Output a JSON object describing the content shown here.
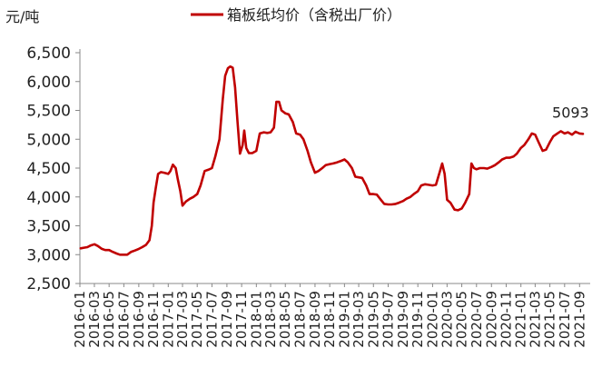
{
  "chart_data": {
    "type": "line",
    "y_unit_label": "元/吨",
    "legend": {
      "label": "箱板纸均价（含税出厂价）",
      "placement": "top-center"
    },
    "series": [
      {
        "name": "箱板纸均价（含税出厂价）",
        "color": "#C00000",
        "points": [
          [
            "2016-01-04",
            3110
          ],
          [
            "2016-01-18",
            3120
          ],
          [
            "2016-02-01",
            3130
          ],
          [
            "2016-02-15",
            3160
          ],
          [
            "2016-03-01",
            3180
          ],
          [
            "2016-03-15",
            3150
          ],
          [
            "2016-04-01",
            3100
          ],
          [
            "2016-04-15",
            3080
          ],
          [
            "2016-05-01",
            3080
          ],
          [
            "2016-05-15",
            3050
          ],
          [
            "2016-06-01",
            3020
          ],
          [
            "2016-06-15",
            3000
          ],
          [
            "2016-07-01",
            3000
          ],
          [
            "2016-07-15",
            3000
          ],
          [
            "2016-08-01",
            3050
          ],
          [
            "2016-08-15",
            3070
          ],
          [
            "2016-09-01",
            3100
          ],
          [
            "2016-09-15",
            3130
          ],
          [
            "2016-10-01",
            3170
          ],
          [
            "2016-10-15",
            3250
          ],
          [
            "2016-10-25",
            3500
          ],
          [
            "2016-11-01",
            3900
          ],
          [
            "2016-11-10",
            4150
          ],
          [
            "2016-11-20",
            4400
          ],
          [
            "2016-12-01",
            4430
          ],
          [
            "2016-12-15",
            4420
          ],
          [
            "2017-01-01",
            4400
          ],
          [
            "2017-01-10",
            4450
          ],
          [
            "2017-01-20",
            4560
          ],
          [
            "2017-02-01",
            4500
          ],
          [
            "2017-02-10",
            4300
          ],
          [
            "2017-02-20",
            4100
          ],
          [
            "2017-03-01",
            3850
          ],
          [
            "2017-03-15",
            3920
          ],
          [
            "2017-04-01",
            3970
          ],
          [
            "2017-04-15",
            4000
          ],
          [
            "2017-05-01",
            4050
          ],
          [
            "2017-05-15",
            4200
          ],
          [
            "2017-06-01",
            4450
          ],
          [
            "2017-06-15",
            4470
          ],
          [
            "2017-07-01",
            4500
          ],
          [
            "2017-07-15",
            4700
          ],
          [
            "2017-08-01",
            5000
          ],
          [
            "2017-08-15",
            5700
          ],
          [
            "2017-08-25",
            6100
          ],
          [
            "2017-09-05",
            6230
          ],
          [
            "2017-09-15",
            6260
          ],
          [
            "2017-09-25",
            6240
          ],
          [
            "2017-10-05",
            5900
          ],
          [
            "2017-10-15",
            5300
          ],
          [
            "2017-10-25",
            4750
          ],
          [
            "2017-11-05",
            4900
          ],
          [
            "2017-11-12",
            5150
          ],
          [
            "2017-11-20",
            4850
          ],
          [
            "2017-12-01",
            4760
          ],
          [
            "2017-12-15",
            4760
          ],
          [
            "2018-01-01",
            4800
          ],
          [
            "2018-01-15",
            5100
          ],
          [
            "2018-02-01",
            5120
          ],
          [
            "2018-02-15",
            5110
          ],
          [
            "2018-03-01",
            5120
          ],
          [
            "2018-03-15",
            5200
          ],
          [
            "2018-03-25",
            5650
          ],
          [
            "2018-04-05",
            5650
          ],
          [
            "2018-04-15",
            5500
          ],
          [
            "2018-05-01",
            5450
          ],
          [
            "2018-05-15",
            5430
          ],
          [
            "2018-06-01",
            5300
          ],
          [
            "2018-06-15",
            5100
          ],
          [
            "2018-07-01",
            5080
          ],
          [
            "2018-07-15",
            5000
          ],
          [
            "2018-08-01",
            4800
          ],
          [
            "2018-08-15",
            4600
          ],
          [
            "2018-09-01",
            4420
          ],
          [
            "2018-09-15",
            4450
          ],
          [
            "2018-10-01",
            4500
          ],
          [
            "2018-10-15",
            4550
          ],
          [
            "2018-11-01",
            4570
          ],
          [
            "2018-11-15",
            4580
          ],
          [
            "2018-12-01",
            4600
          ],
          [
            "2018-12-15",
            4620
          ],
          [
            "2019-01-01",
            4650
          ],
          [
            "2019-01-15",
            4600
          ],
          [
            "2019-02-01",
            4500
          ],
          [
            "2019-02-15",
            4350
          ],
          [
            "2019-03-01",
            4340
          ],
          [
            "2019-03-15",
            4330
          ],
          [
            "2019-04-01",
            4200
          ],
          [
            "2019-04-15",
            4050
          ],
          [
            "2019-05-01",
            4050
          ],
          [
            "2019-05-15",
            4040
          ],
          [
            "2019-06-01",
            3950
          ],
          [
            "2019-06-15",
            3880
          ],
          [
            "2019-07-01",
            3870
          ],
          [
            "2019-07-15",
            3870
          ],
          [
            "2019-08-01",
            3880
          ],
          [
            "2019-08-15",
            3900
          ],
          [
            "2019-09-01",
            3930
          ],
          [
            "2019-09-15",
            3970
          ],
          [
            "2019-10-01",
            4000
          ],
          [
            "2019-10-15",
            4050
          ],
          [
            "2019-11-01",
            4100
          ],
          [
            "2019-11-15",
            4200
          ],
          [
            "2019-12-01",
            4220
          ],
          [
            "2019-12-15",
            4210
          ],
          [
            "2020-01-01",
            4200
          ],
          [
            "2020-01-15",
            4210
          ],
          [
            "2020-02-01",
            4450
          ],
          [
            "2020-02-10",
            4580
          ],
          [
            "2020-02-20",
            4400
          ],
          [
            "2020-03-01",
            3950
          ],
          [
            "2020-03-15",
            3900
          ],
          [
            "2020-04-01",
            3780
          ],
          [
            "2020-04-15",
            3770
          ],
          [
            "2020-05-01",
            3800
          ],
          [
            "2020-05-15",
            3900
          ],
          [
            "2020-06-01",
            4050
          ],
          [
            "2020-06-10",
            4580
          ],
          [
            "2020-06-20",
            4500
          ],
          [
            "2020-07-01",
            4480
          ],
          [
            "2020-07-15",
            4500
          ],
          [
            "2020-08-01",
            4500
          ],
          [
            "2020-08-15",
            4490
          ],
          [
            "2020-09-01",
            4520
          ],
          [
            "2020-09-15",
            4550
          ],
          [
            "2020-10-01",
            4600
          ],
          [
            "2020-10-15",
            4650
          ],
          [
            "2020-11-01",
            4680
          ],
          [
            "2020-11-15",
            4680
          ],
          [
            "2020-12-01",
            4700
          ],
          [
            "2020-12-15",
            4750
          ],
          [
            "2021-01-01",
            4850
          ],
          [
            "2021-01-15",
            4900
          ],
          [
            "2021-02-01",
            5000
          ],
          [
            "2021-02-15",
            5100
          ],
          [
            "2021-03-01",
            5080
          ],
          [
            "2021-03-15",
            4950
          ],
          [
            "2021-04-01",
            4800
          ],
          [
            "2021-04-15",
            4820
          ],
          [
            "2021-05-01",
            4950
          ],
          [
            "2021-05-15",
            5050
          ],
          [
            "2021-06-01",
            5100
          ],
          [
            "2021-06-15",
            5140
          ],
          [
            "2021-07-01",
            5100
          ],
          [
            "2021-07-15",
            5120
          ],
          [
            "2021-08-01",
            5080
          ],
          [
            "2021-08-15",
            5130
          ],
          [
            "2021-09-01",
            5100
          ],
          [
            "2021-09-15",
            5093
          ]
        ]
      }
    ],
    "annotations": [
      {
        "text": "5093",
        "x": "2021-09-15",
        "y": 5093
      }
    ],
    "y_ticks": [
      "2,500",
      "3,000",
      "3,500",
      "4,000",
      "4,500",
      "5,000",
      "5,500",
      "6,000",
      "6,500"
    ],
    "y_tick_values": [
      2500,
      3000,
      3500,
      4000,
      4500,
      5000,
      5500,
      6000,
      6500
    ],
    "x_ticks": [
      "2016-01",
      "2016-03",
      "2016-05",
      "2016-07",
      "2016-09",
      "2016-11",
      "2017-01",
      "2017-03",
      "2017-05",
      "2017-07",
      "2017-09",
      "2017-11",
      "2018-01",
      "2018-03",
      "2018-05",
      "2018-07",
      "2018-09",
      "2018-11",
      "2019-01",
      "2019-03",
      "2019-05",
      "2019-07",
      "2019-09",
      "2019-11",
      "2020-01",
      "2020-03",
      "2020-05",
      "2020-07",
      "2020-09",
      "2020-11",
      "2021-01",
      "2021-03",
      "2021-05",
      "2021-07",
      "2021-09"
    ],
    "ylim": [
      2500,
      6500
    ],
    "xlim": [
      "2016-01-01",
      "2021-10-15"
    ],
    "grid": false
  }
}
